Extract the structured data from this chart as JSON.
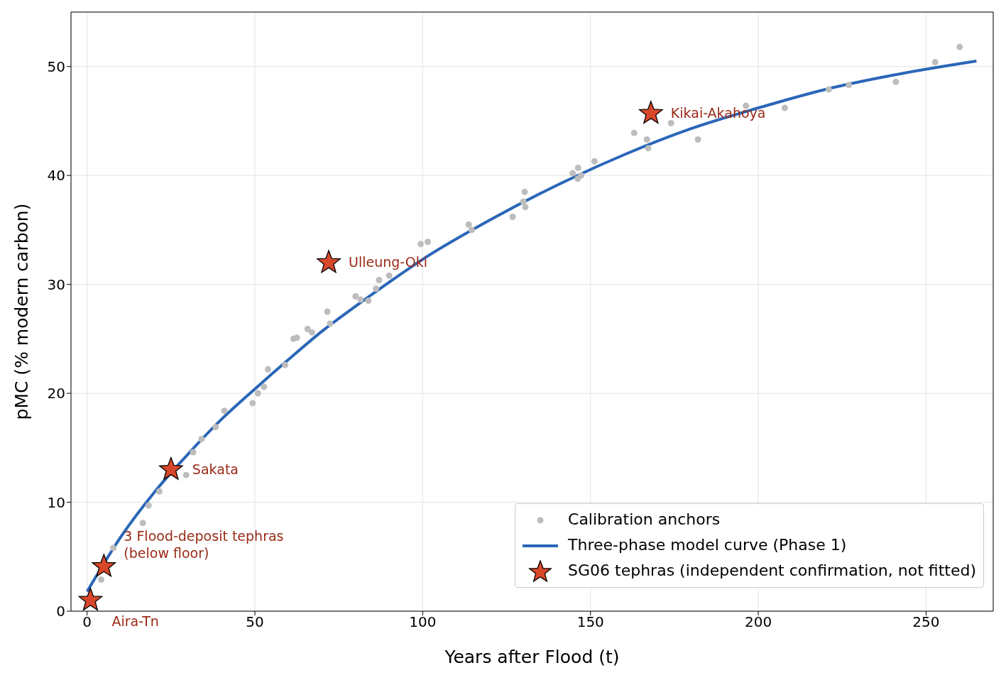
{
  "chart_data": {
    "type": "scatter",
    "xlabel": "Years after Flood (t)",
    "ylabel": "pMC (% modern carbon)",
    "xlim": [
      -4.8,
      270
    ],
    "ylim": [
      0,
      55
    ],
    "xticks": [
      0,
      50,
      100,
      150,
      200,
      250
    ],
    "yticks": [
      0,
      10,
      20,
      30,
      40,
      50
    ],
    "grid": true,
    "legend": "bottom right",
    "series": [
      {
        "name": "Calibration anchors",
        "marker": "circle",
        "color": "#bdbdbd",
        "x": [
          4.2,
          7.8,
          16.6,
          18.3,
          21.5,
          24,
          29.5,
          31.6,
          34.1,
          38.3,
          40.9,
          49.3,
          50.9,
          52.7,
          53.9,
          59,
          61.5,
          62.5,
          65.7,
          67,
          71.6,
          72.4,
          80,
          81.5,
          83.8,
          86.1,
          87,
          90,
          99.4,
          101.5,
          113.7,
          114.6,
          126.8,
          130.4,
          130.6,
          130,
          144.7,
          146.3,
          146.2,
          147.2,
          151.2,
          163,
          166.8,
          167.2,
          174,
          182,
          196.3,
          207.9,
          221,
          227,
          241,
          252.7,
          260
        ],
        "values": [
          2.9,
          5.8,
          8.1,
          9.7,
          11.0,
          null,
          12.5,
          14.6,
          15.8,
          16.9,
          18.4,
          19.1,
          20.0,
          20.6,
          22.2,
          22.6,
          25.0,
          25.1,
          25.9,
          25.6,
          27.5,
          26.4,
          28.9,
          28.6,
          28.5,
          29.6,
          30.4,
          30.8,
          33.7,
          33.9,
          35.5,
          35.0,
          36.2,
          38.5,
          37.1,
          37.6,
          40.2,
          40.7,
          39.7,
          40.0,
          41.3,
          43.9,
          43.3,
          42.5,
          44.8,
          43.3,
          46.4,
          46.2,
          47.9,
          48.3,
          48.6,
          50.4,
          51.8
        ]
      },
      {
        "name": "Three-phase model curve (Phase 1)",
        "type": "line",
        "marker": "none",
        "line_style": "solid",
        "color": "#2a66b8",
        "x": [
          0,
          10,
          20,
          30,
          40,
          50,
          60,
          70,
          80,
          90,
          100,
          120,
          140,
          160,
          180,
          200,
          220,
          240,
          265
        ],
        "values": [
          1.8,
          6.8,
          10.9,
          14.4,
          17.6,
          20.4,
          23.1,
          25.7,
          28.0,
          30.2,
          32.3,
          35.9,
          39.1,
          41.9,
          44.3,
          46.2,
          47.9,
          49.2,
          50.5
        ]
      },
      {
        "name": "SG06 tephras (independent confirmation, not fitted)",
        "marker": "star",
        "color": "#d9472b",
        "x": [
          1,
          5,
          25,
          72,
          168
        ],
        "values": [
          1.0,
          4.1,
          13.0,
          32.0,
          45.7
        ]
      }
    ],
    "annotations": [
      {
        "text": "Aira-Tn",
        "x": 1,
        "y": 1.0
      },
      {
        "text": "3 Flood-deposit tephras\n(below floor)",
        "x": 5,
        "y": 4.1
      },
      {
        "text": "Sakata",
        "x": 25,
        "y": 13.0
      },
      {
        "text": "Ulleung-Oki",
        "x": 72,
        "y": 32.0
      },
      {
        "text": "Kikai-Akahoya",
        "x": 168,
        "y": 45.7
      }
    ]
  }
}
